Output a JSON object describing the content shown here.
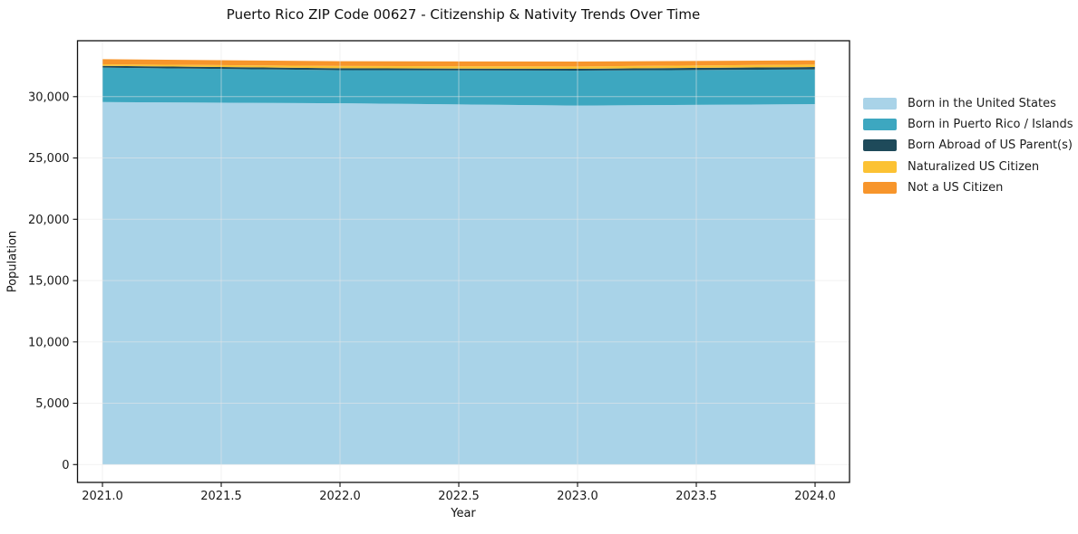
{
  "page": {
    "background": "#ffffff"
  },
  "chart_data": {
    "type": "area",
    "stacked": true,
    "title": "Puerto Rico ZIP Code 00627 - Citizenship & Nativity Trends Over Time",
    "xlabel": "Year",
    "ylabel": "Population",
    "x": [
      2021,
      2022,
      2023,
      2024
    ],
    "series": [
      {
        "name": "Born in the United States",
        "color": "#A9D3E8",
        "values": [
          29560,
          29460,
          29270,
          29390
        ]
      },
      {
        "name": "Born in Puerto Rico / Islands",
        "color": "#3DA7C0",
        "values": [
          2810,
          2700,
          2850,
          2830
        ]
      },
      {
        "name": "Born Abroad of US Parent(s)",
        "color": "#1E4A5A",
        "values": [
          140,
          160,
          150,
          200
        ]
      },
      {
        "name": "Naturalized US Citizen",
        "color": "#FCC233",
        "values": [
          130,
          180,
          200,
          195
        ]
      },
      {
        "name": "Not a US Citizen",
        "color": "#F7952B",
        "values": [
          420,
          390,
          390,
          340
        ]
      }
    ],
    "totals": [
      33060,
      32890,
      32860,
      32955
    ],
    "xticks": {
      "values": [
        2021.0,
        2021.5,
        2022.0,
        2022.5,
        2023.0,
        2023.5,
        2024.0
      ],
      "labels": [
        "2021.0",
        "2021.5",
        "2022.0",
        "2022.5",
        "2023.0",
        "2023.5",
        "2024.0"
      ]
    },
    "yticks": {
      "values": [
        0,
        5000,
        10000,
        15000,
        20000,
        25000,
        30000
      ],
      "labels": [
        "0",
        "5,000",
        "10,000",
        "15,000",
        "20,000",
        "25,000",
        "30,000"
      ]
    },
    "xlim": [
      2020.895,
      2024.145
    ],
    "ylim": [
      -1455,
      34560
    ],
    "grid": true,
    "legend_position": "outside-upper-right"
  },
  "colors": {
    "spine": "#111111",
    "tick": "#111111",
    "tick_label": "#1a1a1a",
    "grid": "#e8e8e8"
  }
}
